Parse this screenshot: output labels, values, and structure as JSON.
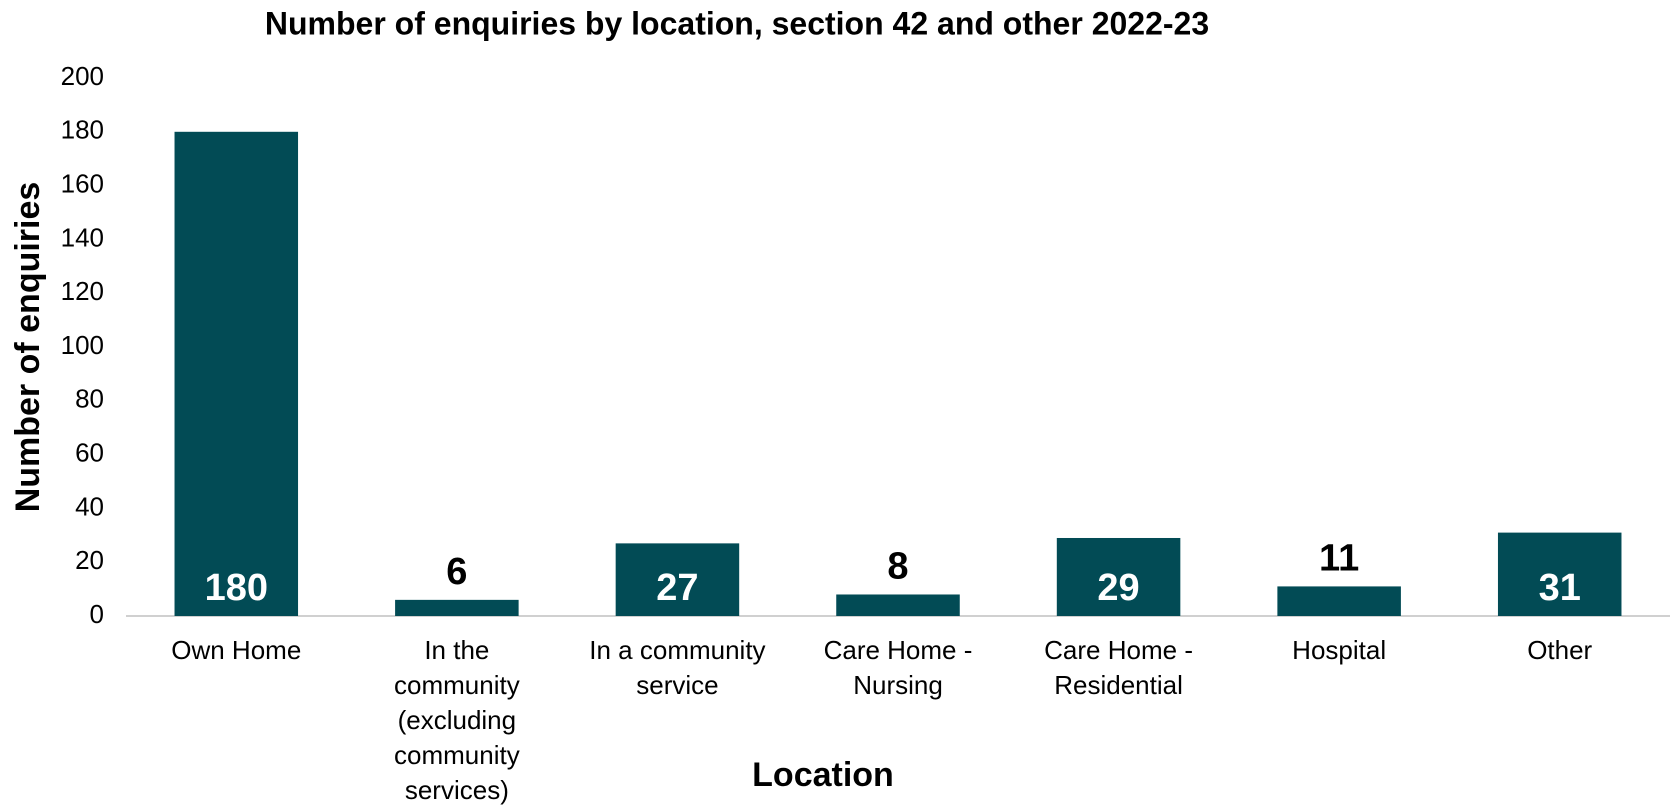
{
  "chart_data": {
    "type": "bar",
    "title": "Number of enquiries by location, section 42 and other 2022-23",
    "x_label": "Location",
    "y_label": "Number of enquiries",
    "categories": [
      "Own Home",
      "In the community (excluding community services)",
      "In a community service",
      "Care Home - Nursing",
      "Care Home - Residential",
      "Hospital",
      "Other"
    ],
    "values": [
      180,
      6,
      27,
      8,
      29,
      11,
      31
    ],
    "color": "#024b55",
    "ylim": [
      0,
      200
    ],
    "yticks": [
      0,
      20,
      40,
      60,
      80,
      100,
      120,
      140,
      160,
      180,
      200
    ],
    "grid": false
  }
}
